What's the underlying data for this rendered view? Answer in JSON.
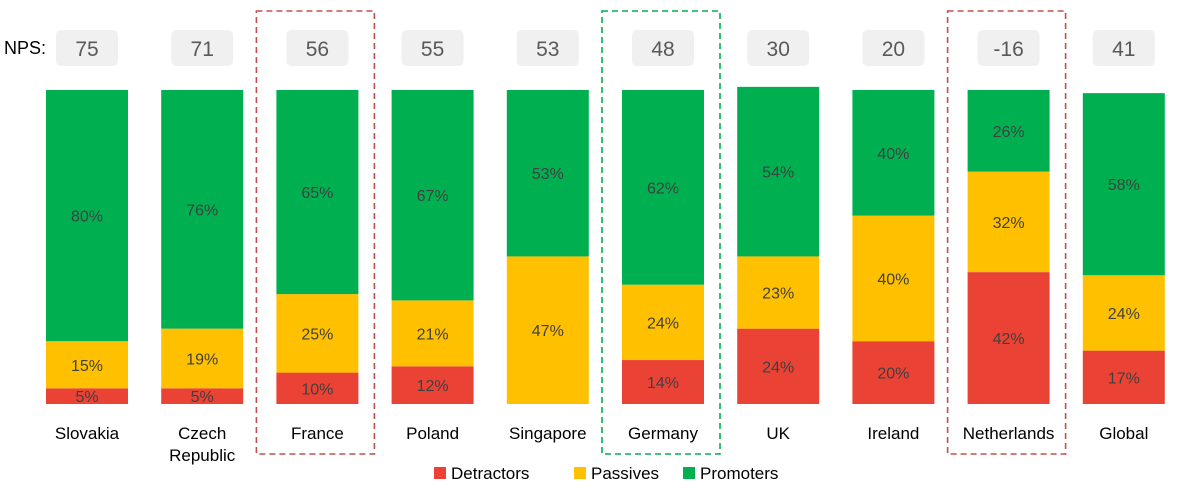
{
  "chart_data": {
    "type": "bar",
    "stacked": true,
    "percent_stacked": true,
    "nps_row_label": "NPS:",
    "categories": [
      [
        "Slovakia"
      ],
      [
        "Czech",
        "Republic"
      ],
      [
        "France"
      ],
      [
        "Poland"
      ],
      [
        "Singapore"
      ],
      [
        "Germany"
      ],
      [
        "UK"
      ],
      [
        "Ireland"
      ],
      [
        "Netherlands"
      ],
      [
        "Global"
      ]
    ],
    "nps": [
      "75",
      "71",
      "56",
      "55",
      "53",
      "48",
      "30",
      "20",
      "-16",
      "41"
    ],
    "series": [
      {
        "name": "Detractors",
        "color": "#ea4335",
        "values": [
          5,
          5,
          10,
          12,
          0,
          14,
          24,
          20,
          42,
          17
        ]
      },
      {
        "name": "Passives",
        "color": "#ffc000",
        "values": [
          15,
          19,
          25,
          21,
          47,
          24,
          23,
          40,
          32,
          24
        ]
      },
      {
        "name": "Promoters",
        "color": "#00b050",
        "values": [
          80,
          76,
          65,
          67,
          53,
          62,
          54,
          40,
          26,
          58
        ]
      }
    ],
    "value_suffix": "%",
    "ylim": [
      0,
      100
    ],
    "legend_position": "bottom",
    "highlights": [
      {
        "category": "France",
        "color": "#c0504d",
        "style": "dashed"
      },
      {
        "category": "Germany",
        "color": "#00b050",
        "style": "dashed"
      },
      {
        "category": "Netherlands",
        "color": "#c0504d",
        "style": "dashed"
      }
    ]
  }
}
